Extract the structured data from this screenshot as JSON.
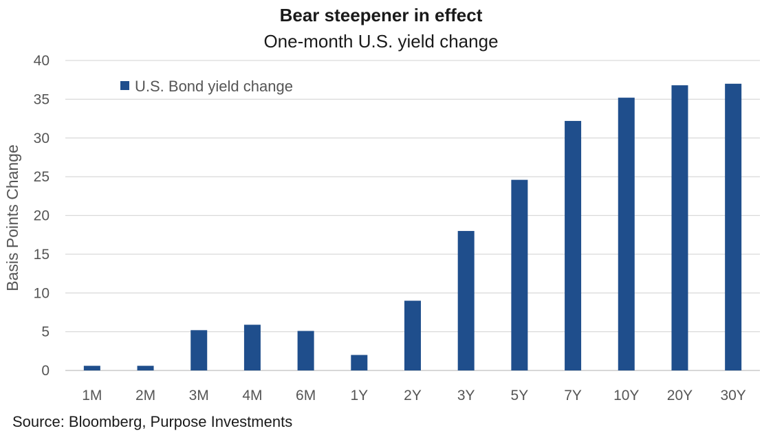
{
  "chart_data": {
    "type": "bar",
    "title": "Bear steepener in effect",
    "subtitle": "One-month U.S. yield change",
    "ylabel": "Basis Points Change",
    "xlabel": "",
    "ylim": [
      0,
      40
    ],
    "yticks": [
      0,
      5,
      10,
      15,
      20,
      25,
      30,
      35,
      40
    ],
    "grid": true,
    "legend_position": "top-left",
    "categories": [
      "1M",
      "2M",
      "3M",
      "4M",
      "6M",
      "1Y",
      "2Y",
      "3Y",
      "5Y",
      "7Y",
      "10Y",
      "20Y",
      "30Y"
    ],
    "series": [
      {
        "name": "U.S. Bond yield change",
        "color": "#1f4e8c",
        "values": [
          0.6,
          0.6,
          5.2,
          5.9,
          5.1,
          2.0,
          9.0,
          18.0,
          24.6,
          32.2,
          35.2,
          36.8,
          37.0
        ]
      }
    ],
    "source": "Source: Bloomberg, Purpose Investments"
  }
}
